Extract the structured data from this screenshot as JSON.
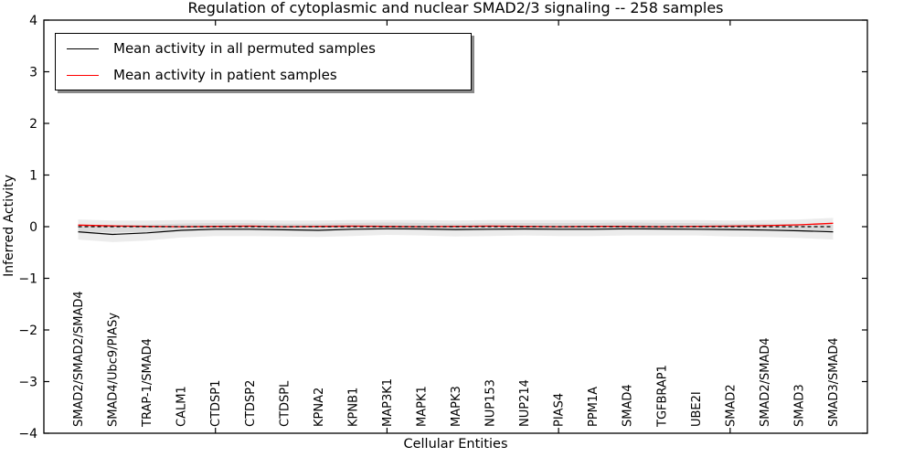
{
  "figure": {
    "title": "Regulation of cytoplasmic and nuclear SMAD2/3 signaling -- 258 samples",
    "xlabel": "Cellular Entities",
    "ylabel": "Inferred Activity"
  },
  "legend": {
    "items": [
      {
        "label": "Mean activity in all permuted samples",
        "color": "#000000"
      },
      {
        "label": "Mean activity in patient samples",
        "color": "#ff0000"
      }
    ]
  },
  "chart_data": {
    "type": "line",
    "title": "Regulation of cytoplasmic and nuclear SMAD2/3 signaling -- 258 samples",
    "xlabel": "Cellular Entities",
    "ylabel": "Inferred Activity",
    "xlim": [
      0,
      24
    ],
    "ylim": [
      -4,
      4
    ],
    "grid": false,
    "legend_position": "upper left",
    "ytick_values": [
      4,
      3,
      2,
      1,
      0,
      -1,
      -2,
      -3,
      -4
    ],
    "ytick_labels": [
      "4",
      "3",
      "2",
      "1",
      "0",
      "−1",
      "−2",
      "−3",
      "−4"
    ],
    "xtick_values": [
      5,
      10,
      15,
      20
    ],
    "categories": [
      "SMAD2/SMAD2/SMAD4",
      "SMAD4/Ubc9/PIASy",
      "TRAP-1/SMAD4",
      "CALM1",
      "CTDSP1",
      "CTDSP2",
      "CTDSPL",
      "KPNA2",
      "KPNB1",
      "MAP3K1",
      "MAPK1",
      "MAPK3",
      "NUP153",
      "NUP214",
      "PIAS4",
      "PPM1A",
      "SMAD4",
      "TGFBRAP1",
      "UBE2I",
      "SMAD2",
      "SMAD2/SMAD4",
      "SMAD3",
      "SMAD3/SMAD4"
    ],
    "zero_line": {
      "y": 0,
      "style": "dashed",
      "color": "#000000"
    },
    "series": [
      {
        "name": "Mean activity in all permuted samples",
        "color": "#000000",
        "style": "solid",
        "values": [
          -0.1,
          -0.15,
          -0.12,
          -0.07,
          -0.05,
          -0.05,
          -0.06,
          -0.07,
          -0.05,
          -0.04,
          -0.045,
          -0.055,
          -0.05,
          -0.045,
          -0.05,
          -0.05,
          -0.04,
          -0.045,
          -0.05,
          -0.055,
          -0.065,
          -0.08,
          -0.1
        ]
      },
      {
        "name": "Mean activity in patient samples",
        "color": "#ff0000",
        "style": "solid",
        "values": [
          0.03,
          0.015,
          0.005,
          0.0,
          0.005,
          0.01,
          0.0,
          0.005,
          0.01,
          0.005,
          0.0,
          0.005,
          0.01,
          0.005,
          0.0,
          0.005,
          0.005,
          0.0,
          0.005,
          0.01,
          0.02,
          0.035,
          0.065
        ]
      }
    ],
    "bands": [
      {
        "name": "permuted-samples-band",
        "color": "rgba(0,0,0,0.075)",
        "upper": [
          0.05,
          0.03,
          0.04,
          0.06,
          0.07,
          0.07,
          0.06,
          0.06,
          0.07,
          0.08,
          0.07,
          0.06,
          0.07,
          0.07,
          0.07,
          0.07,
          0.08,
          0.07,
          0.07,
          0.06,
          0.06,
          0.05,
          0.04
        ],
        "lower": [
          -0.25,
          -0.3,
          -0.27,
          -0.21,
          -0.18,
          -0.18,
          -0.19,
          -0.2,
          -0.18,
          -0.16,
          -0.17,
          -0.19,
          -0.18,
          -0.17,
          -0.18,
          -0.18,
          -0.17,
          -0.17,
          -0.17,
          -0.19,
          -0.2,
          -0.22,
          -0.25
        ]
      },
      {
        "name": "patient-samples-band",
        "color": "rgba(0,0,0,0.075)",
        "upper": [
          0.14,
          0.12,
          0.12,
          0.13,
          0.13,
          0.13,
          0.12,
          0.12,
          0.13,
          0.13,
          0.13,
          0.12,
          0.13,
          0.13,
          0.13,
          0.13,
          0.13,
          0.13,
          0.13,
          0.12,
          0.13,
          0.14,
          0.17
        ],
        "lower": [
          -0.09,
          -0.11,
          -0.1,
          -0.08,
          -0.07,
          -0.07,
          -0.08,
          -0.08,
          -0.07,
          -0.06,
          -0.07,
          -0.08,
          -0.07,
          -0.07,
          -0.07,
          -0.07,
          -0.07,
          -0.07,
          -0.07,
          -0.08,
          -0.08,
          -0.08,
          -0.07
        ]
      }
    ]
  }
}
